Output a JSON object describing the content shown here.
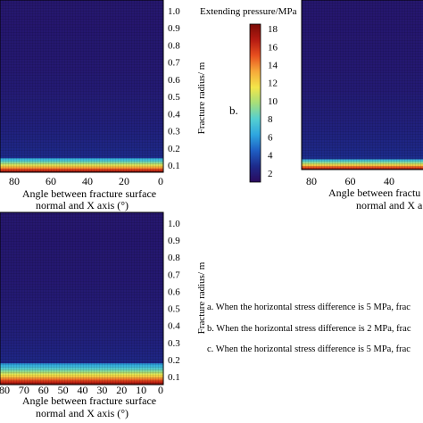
{
  "colorbar": {
    "title": "Extending pressure/MPa",
    "ticks": [
      "18",
      "16",
      "14",
      "12",
      "10",
      "8",
      "6",
      "4",
      "2"
    ],
    "min": 1,
    "max": 18.5,
    "colors": [
      "#2b0b5e",
      "#1d2a8a",
      "#1f5fc4",
      "#2ea6e0",
      "#55d0d0",
      "#a6de7a",
      "#f4e64a",
      "#f6a93a",
      "#e8501f",
      "#b51b12",
      "#7a0b06"
    ]
  },
  "panel_b_label": "b.",
  "legend": {
    "a": "a. When the horizontal stress difference is 5 MPa, frac",
    "b": "b. When the horizontal stress difference is 2 MPa, frac",
    "c": "c. When the horizontal stress difference is 5 MPa, frac"
  },
  "chart_data": [
    {
      "type": "heatmap",
      "panel": "a",
      "ylabel": "Fracture radius/ m",
      "xlabel_line1": "Angle between fracture surface",
      "xlabel_line2": "normal and X axis (°)",
      "x_ticks": [
        "80",
        "60",
        "40",
        "20",
        "0"
      ],
      "y_ticks": [
        "1.0",
        "0.9",
        "0.8",
        "0.7",
        "0.6",
        "0.5",
        "0.4",
        "0.3",
        "0.2",
        "0.1"
      ],
      "xlim": [
        90,
        0
      ],
      "ylim": [
        0,
        1.05
      ],
      "z_unit": "Extending pressure/MPa"
    },
    {
      "type": "heatmap",
      "panel": "b",
      "x_ticks": [
        "80",
        "60",
        "40"
      ],
      "xlabel_partial": "Angle between fractu",
      "xlabel_partial2": "normal and X a",
      "xlim": [
        90,
        0
      ],
      "ylim": [
        0,
        1.05
      ]
    },
    {
      "type": "heatmap",
      "panel": "c",
      "ylabel": "Fracture radius/ m",
      "xlabel_line1": "Angle between fracture surface",
      "xlabel_line2": "normal and X axis (°)",
      "x_ticks": [
        "80",
        "70",
        "60",
        "50",
        "40",
        "30",
        "20",
        "10",
        "0"
      ],
      "y_ticks": [
        "1.0",
        "0.9",
        "0.8",
        "0.7",
        "0.6",
        "0.5",
        "0.4",
        "0.3",
        "0.2",
        "0.1"
      ],
      "xlim": [
        90,
        0
      ],
      "ylim": [
        0,
        1.05
      ]
    }
  ]
}
